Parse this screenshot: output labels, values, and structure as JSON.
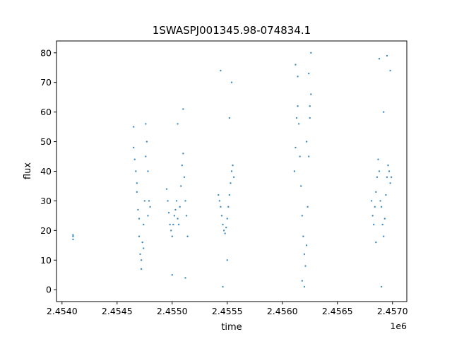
{
  "chart_data": {
    "type": "scatter",
    "title": "1SWASPJ001345.98-074834.1",
    "xlabel": "time",
    "ylabel": "flux",
    "x_offset_label": "1e6",
    "xlim": [
      2.45395,
      2.45713
    ],
    "ylim": [
      -4,
      84
    ],
    "x_ticks": [
      2.454,
      2.4545,
      2.455,
      2.4555,
      2.456,
      2.4565,
      2.457
    ],
    "x_tick_labels": [
      "2.4540",
      "2.4545",
      "2.4550",
      "2.4555",
      "2.4560",
      "2.4565",
      "2.4570"
    ],
    "y_ticks": [
      0,
      10,
      20,
      30,
      40,
      50,
      60,
      70,
      80
    ],
    "y_tick_labels": [
      "0",
      "10",
      "20",
      "30",
      "40",
      "50",
      "60",
      "70",
      "80"
    ],
    "grid": false,
    "marker_color": "#1f77b4",
    "series": [
      {
        "x": [
          2.4541,
          2.4541,
          2.4541,
          2.45465,
          2.45466,
          2.45467,
          2.45468,
          2.45469,
          2.4547,
          2.45471,
          2.45472,
          2.45473,
          2.45474,
          2.45475,
          2.45476,
          2.45477,
          2.45478,
          2.45479,
          2.4548,
          2.45465,
          2.45468,
          2.4547,
          2.45472,
          2.45474,
          2.45476,
          2.45478,
          2.45495,
          2.45496,
          2.45497,
          2.45498,
          2.45499,
          2.455,
          2.45501,
          2.45502,
          2.45503,
          2.45504,
          2.45505,
          2.45506,
          2.45507,
          2.45508,
          2.45509,
          2.4551,
          2.45511,
          2.45512,
          2.45513,
          2.45514,
          2.455,
          2.45505,
          2.4551,
          2.45512,
          2.45542,
          2.45543,
          2.45544,
          2.45545,
          2.45546,
          2.45547,
          2.45548,
          2.45549,
          2.4555,
          2.45551,
          2.45552,
          2.45553,
          2.45554,
          2.45555,
          2.45556,
          2.45544,
          2.45546,
          2.4555,
          2.45552,
          2.45554,
          2.45611,
          2.45612,
          2.45613,
          2.45614,
          2.45615,
          2.45616,
          2.45617,
          2.45618,
          2.45619,
          2.4562,
          2.45621,
          2.45622,
          2.45623,
          2.45624,
          2.45625,
          2.45626,
          2.45612,
          2.45614,
          2.45618,
          2.4562,
          2.45622,
          2.45624,
          2.45625,
          2.45626,
          2.45681,
          2.45682,
          2.45683,
          2.45684,
          2.45685,
          2.45686,
          2.45687,
          2.45688,
          2.45689,
          2.4569,
          2.45691,
          2.45692,
          2.45693,
          2.45694,
          2.45695,
          2.45696,
          2.45697,
          2.45698,
          2.45699,
          2.45685,
          2.45688,
          2.4569,
          2.45692,
          2.45695,
          2.45698
        ],
        "y": [
          17,
          18,
          18.5,
          48,
          44,
          40,
          33,
          27,
          18,
          12,
          10,
          16,
          22,
          30,
          45,
          50,
          40,
          30,
          28,
          55,
          36,
          24,
          7,
          14,
          56,
          25,
          34,
          30,
          26,
          22,
          20,
          18,
          22,
          25,
          27,
          30,
          24,
          22,
          28,
          35,
          42,
          46,
          38,
          30,
          25,
          18,
          5,
          56,
          61,
          4,
          32,
          30,
          28,
          25,
          22,
          20,
          19,
          21,
          24,
          28,
          32,
          36,
          40,
          42,
          38,
          74,
          1,
          10,
          58,
          70,
          40,
          48,
          58,
          62,
          56,
          45,
          35,
          25,
          18,
          12,
          8,
          15,
          28,
          45,
          62,
          66,
          76,
          72,
          3,
          1,
          50,
          73,
          58,
          80,
          30,
          25,
          22,
          28,
          33,
          38,
          44,
          40,
          30,
          28,
          22,
          18,
          24,
          32,
          38,
          42,
          40,
          36,
          38,
          16,
          78,
          1,
          60,
          79,
          74
        ]
      }
    ]
  }
}
